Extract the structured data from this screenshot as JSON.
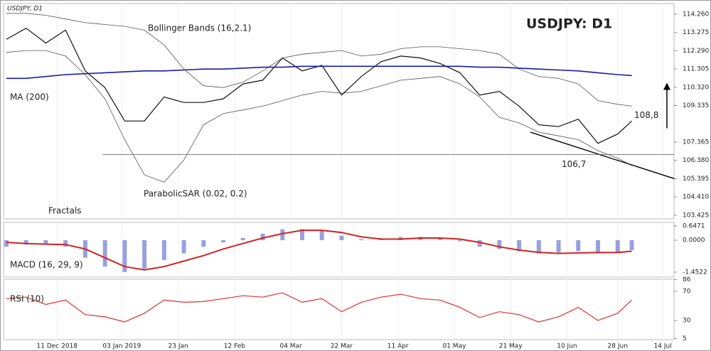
{
  "chart_data": [
    {
      "type": "line",
      "title": "USDJPY: D1",
      "subtitle": "USDJPY, D1",
      "x": [
        "2018-11-23",
        "2018-11-30",
        "2018-12-07",
        "2018-12-14",
        "2018-12-21",
        "2018-12-28",
        "2019-01-04",
        "2019-01-11",
        "2019-01-18",
        "2019-01-25",
        "2019-02-01",
        "2019-02-08",
        "2019-02-15",
        "2019-02-22",
        "2019-03-01",
        "2019-03-08",
        "2019-03-15",
        "2019-03-22",
        "2019-03-29",
        "2019-04-05",
        "2019-04-12",
        "2019-04-19",
        "2019-04-26",
        "2019-05-03",
        "2019-05-10",
        "2019-05-17",
        "2019-05-24",
        "2019-05-31",
        "2019-06-07",
        "2019-06-14",
        "2019-06-21",
        "2019-06-28",
        "2019-07-03"
      ],
      "ylim": [
        103.23,
        114.83
      ],
      "yticks": [
        {
          "value": 114.26,
          "label": "114.260"
        },
        {
          "value": 113.275,
          "label": "113.275"
        },
        {
          "value": 112.29,
          "label": "112.290"
        },
        {
          "value": 111.305,
          "label": "111.305"
        },
        {
          "value": 110.32,
          "label": "110.320"
        },
        {
          "value": 109.335,
          "label": "109.335"
        },
        {
          "value": 107.365,
          "label": "107.365"
        },
        {
          "value": 106.38,
          "label": "106.380"
        },
        {
          "value": 105.395,
          "label": "105.395"
        },
        {
          "value": 104.41,
          "label": "104.410"
        },
        {
          "value": 103.425,
          "label": "103.425"
        }
      ],
      "series": [
        {
          "color": "#111111",
          "values": [
            112.9,
            113.5,
            112.7,
            113.4,
            111.2,
            110.3,
            108.5,
            108.5,
            109.8,
            109.5,
            109.5,
            109.7,
            110.5,
            110.7,
            111.9,
            111.2,
            111.5,
            109.9,
            110.9,
            111.7,
            112.0,
            111.9,
            111.6,
            111.1,
            109.9,
            110.1,
            109.3,
            108.3,
            108.2,
            108.6,
            107.3,
            107.8,
            108.5
          ]
        },
        {
          "name": "MA (200)",
          "color": "#1a1aa8",
          "values": [
            110.8,
            110.8,
            110.9,
            111.0,
            111.05,
            111.1,
            111.15,
            111.2,
            111.2,
            111.25,
            111.3,
            111.3,
            111.35,
            111.4,
            111.4,
            111.45,
            111.45,
            111.45,
            111.45,
            111.45,
            111.45,
            111.45,
            111.45,
            111.45,
            111.4,
            111.4,
            111.35,
            111.3,
            111.25,
            111.2,
            111.1,
            111.0,
            110.95
          ]
        }
      ],
      "bands": {
        "name": "Bollinger Bands (16,2.1)",
        "color": "#555555",
        "upper": [
          114.3,
          114.3,
          114.2,
          114.0,
          113.8,
          113.7,
          113.6,
          113.4,
          112.6,
          111.3,
          110.4,
          110.3,
          110.6,
          111.2,
          111.9,
          112.1,
          112.2,
          112.3,
          112.0,
          112.1,
          112.4,
          112.5,
          112.5,
          112.4,
          112.3,
          112.1,
          111.3,
          110.9,
          110.8,
          110.5,
          109.6,
          109.4,
          109.3
        ],
        "lower": [
          112.2,
          112.3,
          112.3,
          112.0,
          111.0,
          109.7,
          107.5,
          105.6,
          105.2,
          106.4,
          108.3,
          108.9,
          109.1,
          109.3,
          109.6,
          109.9,
          110.1,
          110.0,
          110.1,
          110.4,
          110.7,
          110.8,
          110.9,
          110.5,
          109.8,
          108.7,
          108.4,
          107.9,
          107.7,
          107.5,
          106.9,
          106.5,
          106.1
        ]
      },
      "trendlines": [
        {
          "x": [
            "2019-05-28",
            "2019-07-18"
          ],
          "values": [
            107.9,
            105.4
          ]
        }
      ],
      "annotations": [
        {
          "text": "108,8",
          "value": 108.8
        },
        {
          "text": "106,7",
          "value": 106.7
        },
        {
          "text": "Fractals"
        },
        {
          "text": "ParabolicSAR (0.02, 0.2)"
        }
      ]
    },
    {
      "type": "macd",
      "title": "MACD (16, 29, 9)",
      "x": [
        "2018-11-23",
        "2018-11-30",
        "2018-12-07",
        "2018-12-14",
        "2018-12-21",
        "2018-12-28",
        "2019-01-04",
        "2019-01-11",
        "2019-01-18",
        "2019-01-25",
        "2019-02-01",
        "2019-02-08",
        "2019-02-15",
        "2019-02-22",
        "2019-03-01",
        "2019-03-08",
        "2019-03-15",
        "2019-03-22",
        "2019-03-29",
        "2019-04-05",
        "2019-04-12",
        "2019-04-19",
        "2019-04-26",
        "2019-05-03",
        "2019-05-10",
        "2019-05-17",
        "2019-05-24",
        "2019-05-31",
        "2019-06-07",
        "2019-06-14",
        "2019-06-21",
        "2019-06-28",
        "2019-07-03"
      ],
      "ylim": [
        -1.68,
        0.81
      ],
      "yticks": [
        0.6471,
        {
          "value": 0,
          "label": "0.0000"
        },
        -1.4522
      ],
      "series": [
        {
          "color": "#5560c8",
          "values": [
            -0.3,
            -0.2,
            -0.15,
            -0.3,
            -0.8,
            -1.2,
            -1.45,
            -1.3,
            -0.9,
            -0.6,
            -0.3,
            -0.1,
            0.1,
            0.3,
            0.5,
            0.5,
            0.45,
            0.2,
            0.05,
            0.05,
            0.15,
            0.15,
            0.1,
            -0.05,
            -0.3,
            -0.4,
            -0.5,
            -0.6,
            -0.55,
            -0.5,
            -0.6,
            -0.55,
            -0.45
          ]
        },
        {
          "color": "#d42020",
          "values": [
            -0.1,
            -0.15,
            -0.18,
            -0.2,
            -0.4,
            -0.8,
            -1.2,
            -1.35,
            -1.2,
            -0.95,
            -0.7,
            -0.4,
            -0.15,
            0.1,
            0.3,
            0.45,
            0.45,
            0.35,
            0.15,
            0.05,
            0.05,
            0.1,
            0.1,
            0.05,
            -0.1,
            -0.3,
            -0.45,
            -0.55,
            -0.6,
            -0.58,
            -0.56,
            -0.56,
            -0.5
          ]
        }
      ]
    },
    {
      "type": "line",
      "title": "RSI (10)",
      "x": [
        "2018-11-23",
        "2018-11-30",
        "2018-12-07",
        "2018-12-14",
        "2018-12-21",
        "2018-12-28",
        "2019-01-04",
        "2019-01-11",
        "2019-01-18",
        "2019-01-25",
        "2019-02-01",
        "2019-02-08",
        "2019-02-15",
        "2019-02-22",
        "2019-03-01",
        "2019-03-08",
        "2019-03-15",
        "2019-03-22",
        "2019-03-29",
        "2019-04-05",
        "2019-04-12",
        "2019-04-19",
        "2019-04-26",
        "2019-05-03",
        "2019-05-10",
        "2019-05-17",
        "2019-05-24",
        "2019-05-31",
        "2019-06-07",
        "2019-06-14",
        "2019-06-21",
        "2019-06-28",
        "2019-07-03"
      ],
      "xlim": [
        "2018-11-22",
        "2019-07-18"
      ],
      "xticks": [
        {
          "value": "2018-12-11",
          "label": "11 Dec 2018"
        },
        {
          "value": "2019-01-03",
          "label": "03 Jan 2019"
        },
        {
          "value": "2019-01-23",
          "label": "23 Jan"
        },
        {
          "value": "2019-02-12",
          "label": "12 Feb"
        },
        {
          "value": "2019-03-04",
          "label": "04 Mar"
        },
        {
          "value": "2019-03-22",
          "label": "22 Mar"
        },
        {
          "value": "2019-04-11",
          "label": "11 Apr"
        },
        {
          "value": "2019-05-01",
          "label": "01 May"
        },
        {
          "value": "2019-05-21",
          "label": "21 May"
        },
        {
          "value": "2019-06-10",
          "label": "10 Jun"
        },
        {
          "value": "2019-06-28",
          "label": "28 Jun"
        },
        {
          "value": "2019-07-14",
          "label": "14 Jul"
        }
      ],
      "ylim": [
        3.7,
        86.6
      ],
      "yticks": [
        86,
        70,
        30,
        5
      ],
      "series": [
        {
          "color": "#e03030",
          "values": [
            60,
            62,
            52,
            58,
            38,
            35,
            28,
            40,
            58,
            55,
            56,
            60,
            64,
            62,
            68,
            55,
            60,
            42,
            55,
            62,
            66,
            60,
            58,
            48,
            34,
            42,
            38,
            28,
            35,
            48,
            30,
            40,
            58
          ]
        }
      ]
    }
  ]
}
